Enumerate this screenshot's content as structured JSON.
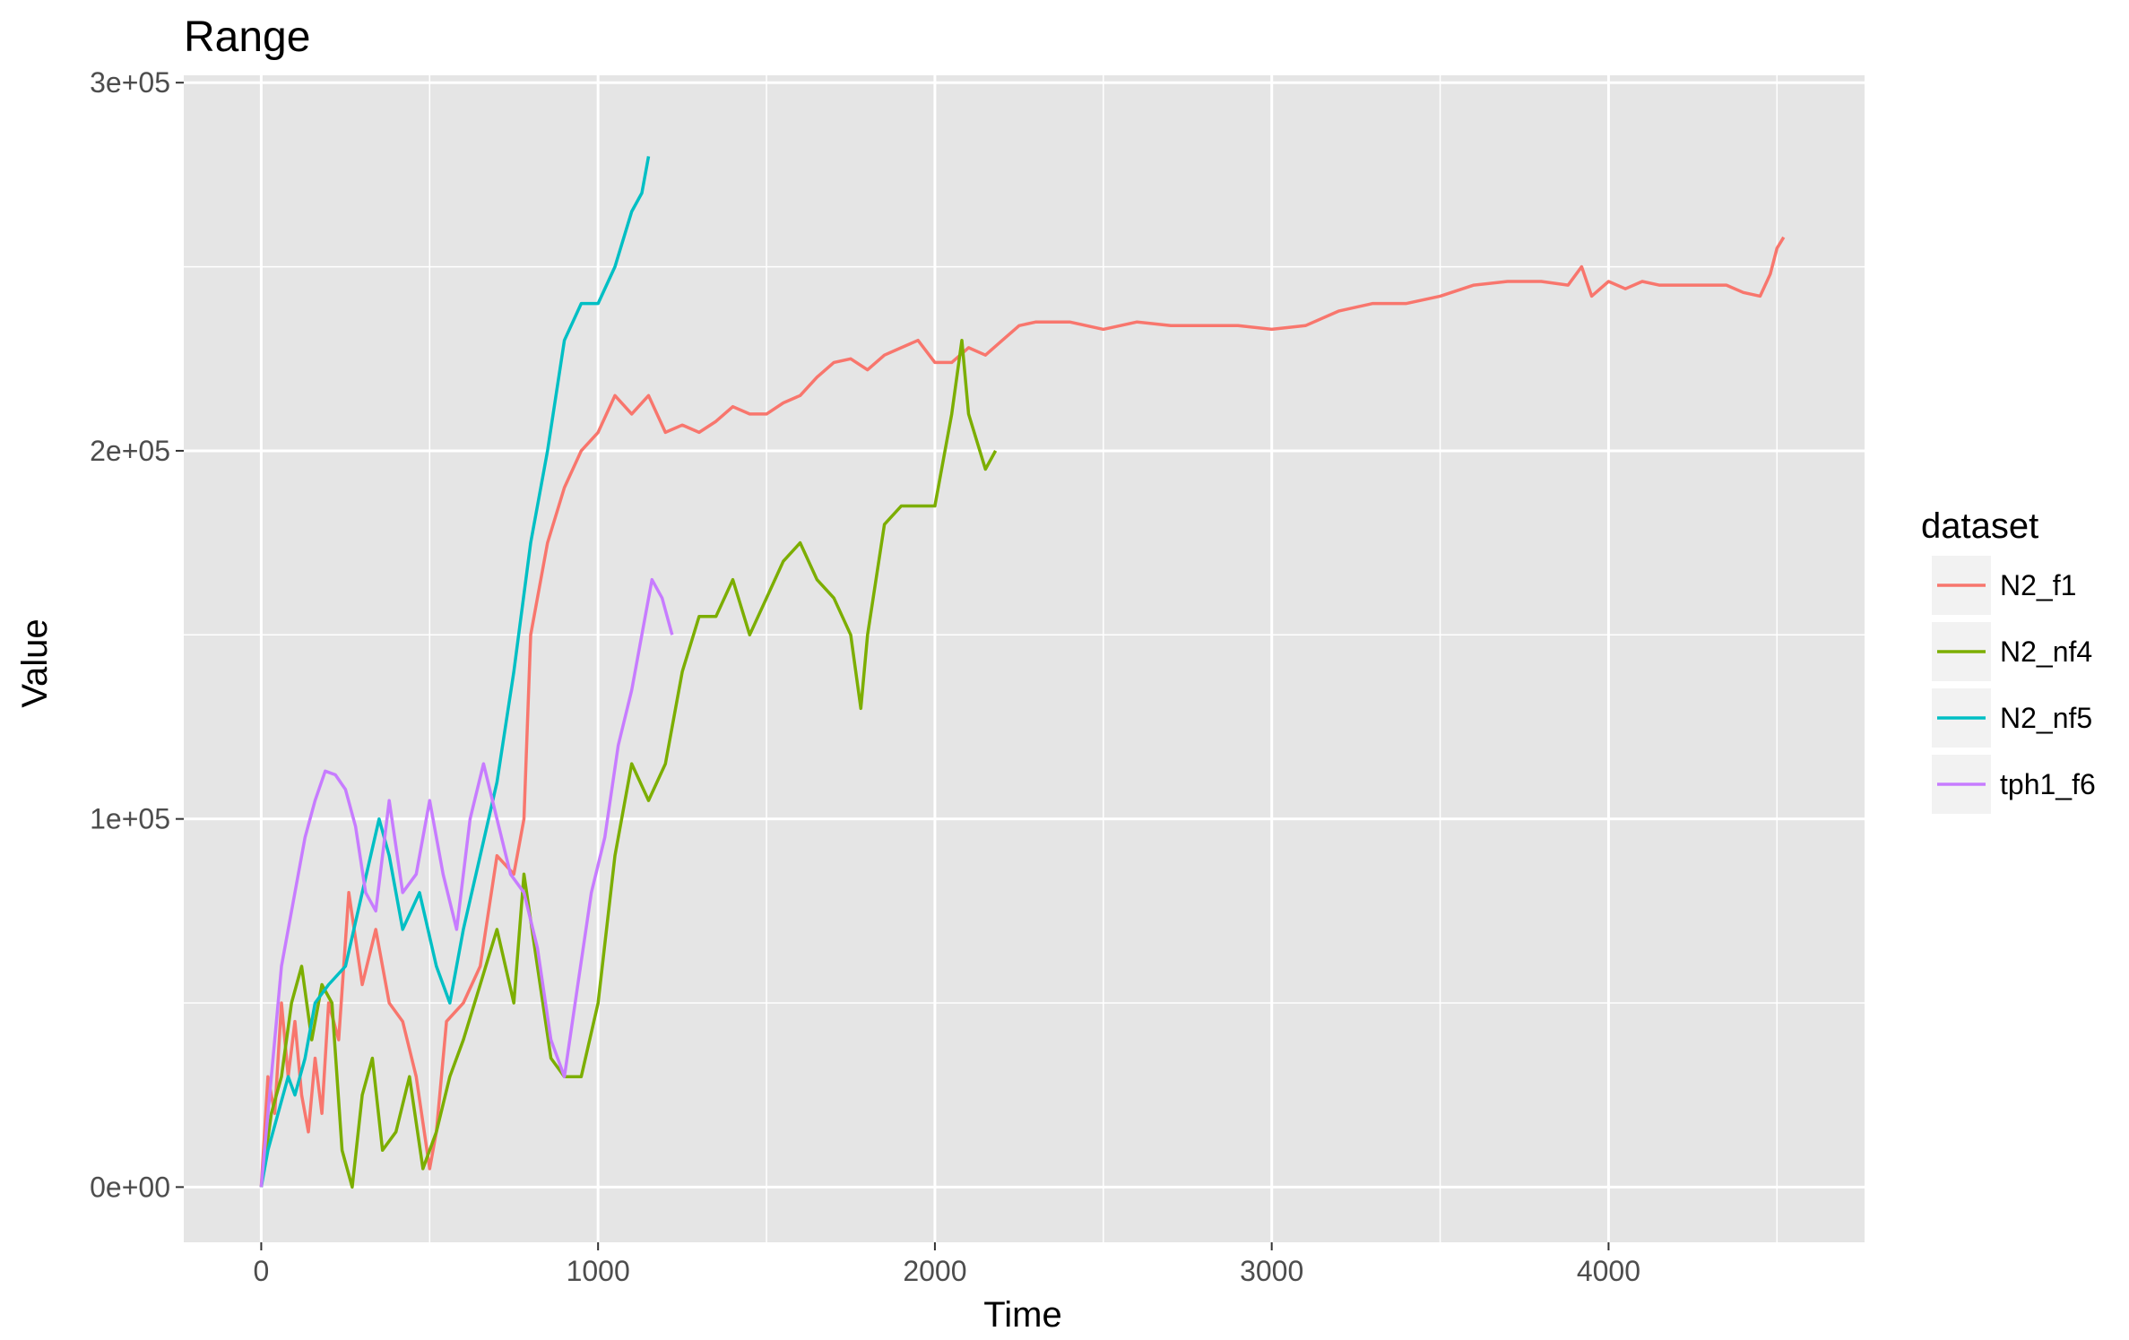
{
  "chart_data": {
    "type": "line",
    "title": "Range",
    "xlabel": "Time",
    "ylabel": "Value",
    "xlim": [
      -230,
      4760
    ],
    "ylim": [
      -15000,
      302000
    ],
    "x_ticks": [
      0,
      1000,
      2000,
      3000,
      4000
    ],
    "y_ticks": [
      0,
      100000,
      200000,
      300000
    ],
    "x_tick_labels": [
      "0",
      "1000",
      "2000",
      "3000",
      "4000"
    ],
    "y_tick_labels": [
      "0e+00",
      "1e+05",
      "2e+05",
      "3e+05"
    ],
    "grid": true,
    "legend": {
      "title": "dataset",
      "position": "right"
    },
    "colors": {
      "panel": "#e5e5e5",
      "grid": "#ffffff"
    },
    "series": [
      {
        "name": "N2_f1",
        "color": "#f8766d",
        "x": [
          0,
          20,
          40,
          60,
          80,
          100,
          120,
          140,
          160,
          180,
          200,
          230,
          260,
          300,
          340,
          380,
          420,
          460,
          500,
          520,
          550,
          600,
          650,
          700,
          750,
          780,
          800,
          850,
          900,
          950,
          1000,
          1050,
          1100,
          1150,
          1200,
          1250,
          1300,
          1350,
          1400,
          1450,
          1500,
          1550,
          1600,
          1650,
          1700,
          1750,
          1800,
          1850,
          1900,
          1950,
          2000,
          2050,
          2100,
          2150,
          2200,
          2250,
          2300,
          2400,
          2500,
          2600,
          2700,
          2800,
          2900,
          3000,
          3100,
          3200,
          3300,
          3400,
          3500,
          3600,
          3700,
          3800,
          3880,
          3920,
          3950,
          4000,
          4050,
          4100,
          4150,
          4200,
          4250,
          4300,
          4350,
          4400,
          4450,
          4480,
          4500,
          4520
        ],
        "y": [
          0,
          30000,
          20000,
          50000,
          30000,
          45000,
          25000,
          15000,
          35000,
          20000,
          50000,
          40000,
          80000,
          55000,
          70000,
          50000,
          45000,
          30000,
          5000,
          15000,
          45000,
          50000,
          60000,
          90000,
          85000,
          100000,
          150000,
          175000,
          190000,
          200000,
          205000,
          215000,
          210000,
          215000,
          205000,
          207000,
          205000,
          208000,
          212000,
          210000,
          210000,
          213000,
          215000,
          220000,
          224000,
          225000,
          222000,
          226000,
          228000,
          230000,
          224000,
          224000,
          228000,
          226000,
          230000,
          234000,
          235000,
          235000,
          233000,
          235000,
          234000,
          234000,
          234000,
          233000,
          234000,
          238000,
          240000,
          240000,
          242000,
          245000,
          246000,
          246000,
          245000,
          250000,
          242000,
          246000,
          244000,
          246000,
          245000,
          245000,
          245000,
          245000,
          245000,
          243000,
          242000,
          248000,
          255000,
          258000
        ]
      },
      {
        "name": "N2_nf4",
        "color": "#7cae00",
        "x": [
          0,
          30,
          60,
          90,
          120,
          150,
          180,
          210,
          240,
          270,
          300,
          330,
          360,
          400,
          440,
          480,
          520,
          560,
          600,
          650,
          700,
          750,
          780,
          820,
          860,
          900,
          950,
          1000,
          1050,
          1100,
          1150,
          1200,
          1250,
          1300,
          1350,
          1400,
          1450,
          1500,
          1550,
          1600,
          1650,
          1700,
          1750,
          1780,
          1800,
          1850,
          1900,
          1950,
          2000,
          2050,
          2080,
          2100,
          2150,
          2180
        ],
        "y": [
          0,
          20000,
          30000,
          50000,
          60000,
          40000,
          55000,
          50000,
          10000,
          0,
          25000,
          35000,
          10000,
          15000,
          30000,
          5000,
          15000,
          30000,
          40000,
          55000,
          70000,
          50000,
          85000,
          60000,
          35000,
          30000,
          30000,
          50000,
          90000,
          115000,
          105000,
          115000,
          140000,
          155000,
          155000,
          165000,
          150000,
          160000,
          170000,
          175000,
          165000,
          160000,
          150000,
          130000,
          150000,
          180000,
          185000,
          185000,
          185000,
          210000,
          230000,
          210000,
          195000,
          200000
        ]
      },
      {
        "name": "N2_nf5",
        "color": "#00bfc4",
        "x": [
          0,
          20,
          50,
          80,
          100,
          130,
          160,
          200,
          250,
          300,
          350,
          380,
          420,
          470,
          520,
          560,
          600,
          650,
          700,
          750,
          800,
          850,
          900,
          950,
          1000,
          1050,
          1100,
          1130,
          1150
        ],
        "y": [
          0,
          10000,
          20000,
          30000,
          25000,
          35000,
          50000,
          55000,
          60000,
          80000,
          100000,
          90000,
          70000,
          80000,
          60000,
          50000,
          70000,
          90000,
          110000,
          140000,
          175000,
          200000,
          230000,
          240000,
          240000,
          250000,
          265000,
          270000,
          280000
        ]
      },
      {
        "name": "tph1_f6",
        "color": "#c77cff",
        "x": [
          0,
          30,
          60,
          100,
          130,
          160,
          190,
          220,
          250,
          280,
          310,
          340,
          380,
          420,
          460,
          500,
          540,
          580,
          620,
          660,
          700,
          740,
          780,
          820,
          860,
          900,
          940,
          980,
          1020,
          1060,
          1100,
          1130,
          1160,
          1190,
          1220
        ],
        "y": [
          0,
          30000,
          60000,
          80000,
          95000,
          105000,
          113000,
          112000,
          108000,
          98000,
          80000,
          75000,
          105000,
          80000,
          85000,
          105000,
          85000,
          70000,
          100000,
          115000,
          100000,
          85000,
          80000,
          65000,
          40000,
          30000,
          55000,
          80000,
          95000,
          120000,
          135000,
          150000,
          165000,
          160000,
          150000
        ]
      }
    ]
  }
}
